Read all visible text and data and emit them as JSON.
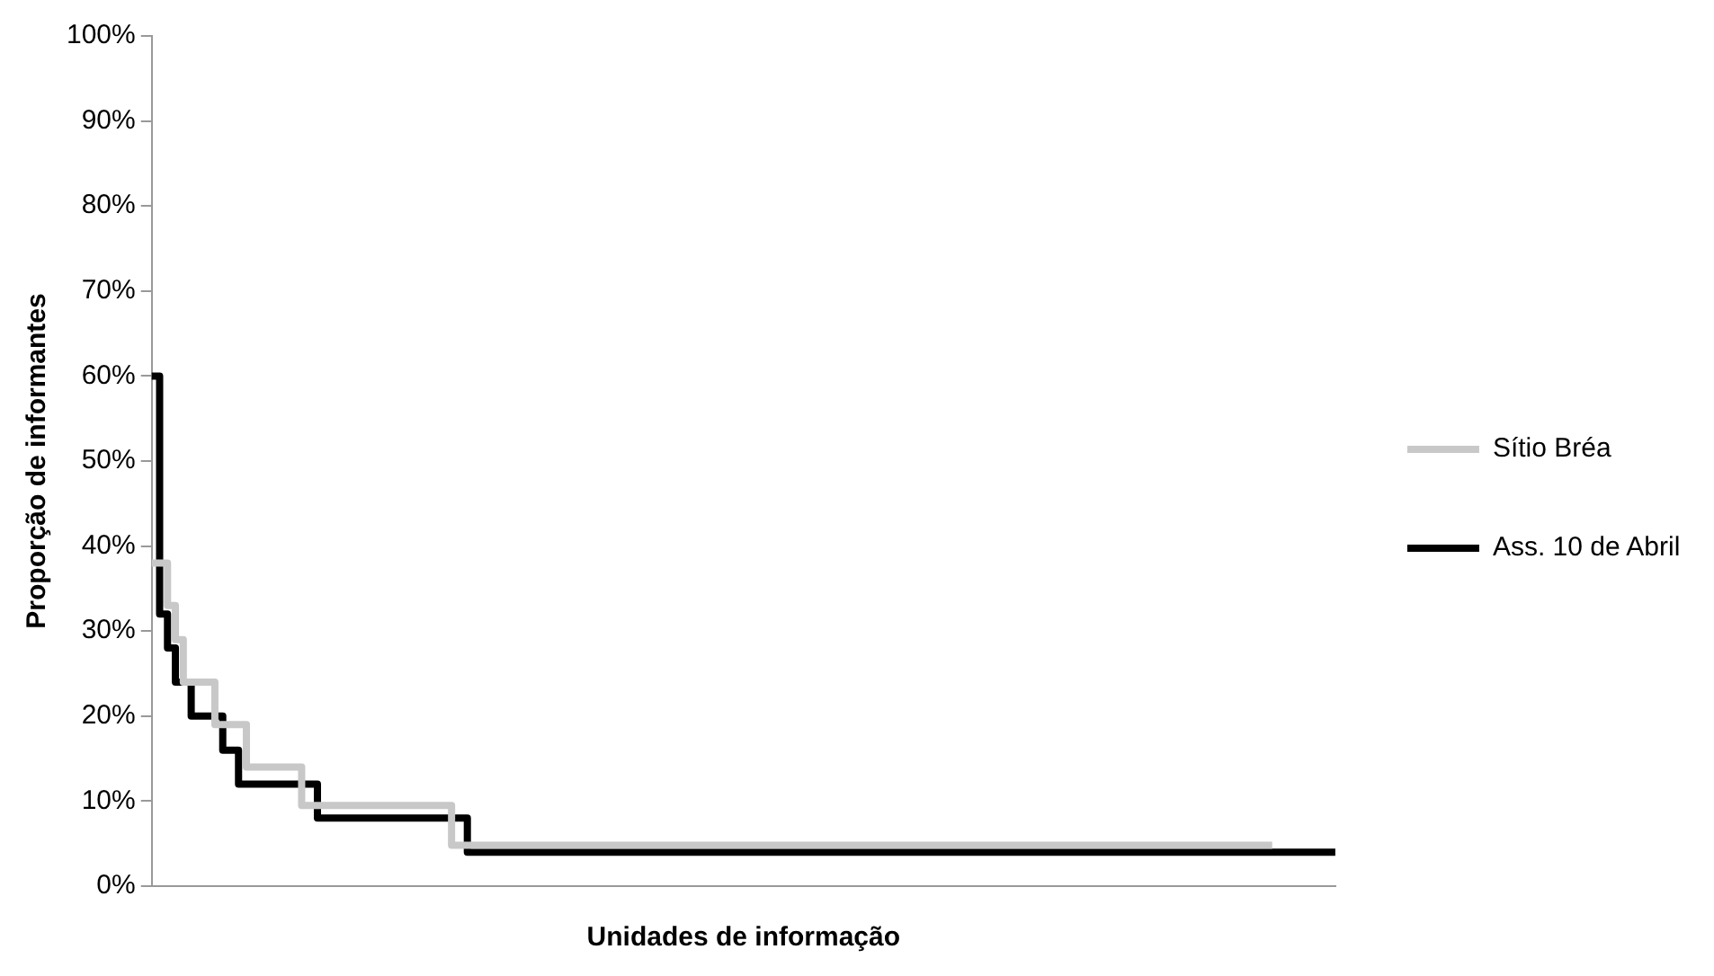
{
  "chart_data": {
    "type": "step",
    "xlabel": "Unidades de informação",
    "ylabel": "Proporção de informantes",
    "categories": [
      null,
      null,
      null,
      null,
      null,
      null,
      null,
      null,
      null,
      null,
      null,
      null,
      null,
      null,
      null,
      null,
      null,
      null,
      null,
      null,
      null,
      null,
      null,
      null,
      null,
      null,
      null,
      null,
      null,
      null,
      null,
      null,
      null,
      null,
      null,
      null,
      null,
      null,
      null,
      null,
      null,
      null,
      null,
      null,
      null,
      null,
      null,
      null,
      null,
      null,
      null,
      null,
      null,
      null,
      null,
      null,
      null,
      null,
      null,
      null,
      null,
      null,
      null,
      null,
      null,
      null,
      null,
      null,
      null,
      null,
      null,
      null,
      null,
      null,
      null,
      null,
      null,
      null,
      null,
      null,
      null,
      null,
      null,
      null,
      null,
      null,
      null,
      null,
      null,
      null,
      null,
      null,
      null,
      null,
      null,
      null,
      null,
      null,
      null,
      null,
      null,
      null,
      null,
      null,
      null,
      null,
      null,
      null,
      null,
      null,
      null,
      null,
      null,
      null,
      null,
      null,
      null,
      null,
      null,
      null,
      null,
      null,
      null,
      null,
      null,
      null,
      null,
      null,
      null,
      null,
      null,
      null,
      null,
      null,
      null,
      null,
      null,
      null,
      null,
      null,
      null,
      null,
      null,
      null,
      null,
      null,
      null,
      null,
      null,
      null,
      null
    ],
    "series": [
      {
        "name": "Sítio Bréa",
        "color": "#c8c8c8",
        "values": [
          38,
          38,
          33,
          29,
          24,
          24,
          24,
          24,
          19,
          19,
          19,
          19,
          14,
          14,
          14,
          14,
          14,
          14,
          14,
          9.5,
          9.5,
          9.5,
          9.5,
          9.5,
          9.5,
          9.5,
          9.5,
          9.5,
          9.5,
          9.5,
          9.5,
          9.5,
          9.5,
          9.5,
          9.5,
          9.5,
          9.5,
          9.5,
          4.8,
          4.8,
          4.8,
          4.8,
          4.8,
          4.8,
          4.8,
          4.8,
          4.8,
          4.8,
          4.8,
          4.8,
          4.8,
          4.8,
          4.8,
          4.8,
          4.8,
          4.8,
          4.8,
          4.8,
          4.8,
          4.8,
          4.8,
          4.8,
          4.8,
          4.8,
          4.8,
          4.8,
          4.8,
          4.8,
          4.8,
          4.8,
          4.8,
          4.8,
          4.8,
          4.8,
          4.8,
          4.8,
          4.8,
          4.8,
          4.8,
          4.8,
          4.8,
          4.8,
          4.8,
          4.8,
          4.8,
          4.8,
          4.8,
          4.8,
          4.8,
          4.8,
          4.8,
          4.8,
          4.8,
          4.8,
          4.8,
          4.8,
          4.8,
          4.8,
          4.8,
          4.8,
          4.8,
          4.8,
          4.8,
          4.8,
          4.8,
          4.8,
          4.8,
          4.8,
          4.8,
          4.8,
          4.8,
          4.8,
          4.8,
          4.8,
          4.8,
          4.8,
          4.8,
          4.8,
          4.8,
          4.8,
          4.8,
          4.8,
          4.8,
          4.8,
          4.8,
          4.8,
          4.8,
          4.8,
          4.8,
          4.8,
          4.8,
          4.8,
          4.8,
          4.8,
          4.8,
          4.8,
          4.8,
          4.8,
          4.8,
          4.8,
          4.8,
          4.8,
          4.8,
          null,
          null,
          null,
          null,
          null,
          null,
          null,
          null
        ]
      },
      {
        "name": "Ass. 10 de Abril",
        "color": "#000000",
        "values": [
          60,
          32,
          28,
          24,
          24,
          20,
          20,
          20,
          20,
          16,
          16,
          12,
          12,
          12,
          12,
          12,
          12,
          12,
          12,
          12,
          12,
          8,
          8,
          8,
          8,
          8,
          8,
          8,
          8,
          8,
          8,
          8,
          8,
          8,
          8,
          8,
          8,
          8,
          8,
          8,
          4,
          4,
          4,
          4,
          4,
          4,
          4,
          4,
          4,
          4,
          4,
          4,
          4,
          4,
          4,
          4,
          4,
          4,
          4,
          4,
          4,
          4,
          4,
          4,
          4,
          4,
          4,
          4,
          4,
          4,
          4,
          4,
          4,
          4,
          4,
          4,
          4,
          4,
          4,
          4,
          4,
          4,
          4,
          4,
          4,
          4,
          4,
          4,
          4,
          4,
          4,
          4,
          4,
          4,
          4,
          4,
          4,
          4,
          4,
          4,
          4,
          4,
          4,
          4,
          4,
          4,
          4,
          4,
          4,
          4,
          4,
          4,
          4,
          4,
          4,
          4,
          4,
          4,
          4,
          4,
          4,
          4,
          4,
          4,
          4,
          4,
          4,
          4,
          4,
          4,
          4,
          4,
          4,
          4,
          4,
          4,
          4,
          4,
          4,
          4,
          4,
          4,
          4,
          4,
          4,
          4,
          4,
          4,
          4,
          4,
          4
        ]
      }
    ],
    "ylim": [
      0,
      100
    ],
    "yticks": [
      {
        "value": 0,
        "label": "0%"
      },
      {
        "value": 10,
        "label": "10%"
      },
      {
        "value": 20,
        "label": "20%"
      },
      {
        "value": 30,
        "label": "30%"
      },
      {
        "value": 40,
        "label": "40%"
      },
      {
        "value": 50,
        "label": "50%"
      },
      {
        "value": 60,
        "label": "60%"
      },
      {
        "value": 70,
        "label": "70%"
      },
      {
        "value": 80,
        "label": "80%"
      },
      {
        "value": 90,
        "label": "90%"
      },
      {
        "value": 100,
        "label": "100%"
      }
    ],
    "tick_labels": "y",
    "grid": false,
    "legend": "right",
    "marker": "none",
    "line_style": "solid"
  }
}
